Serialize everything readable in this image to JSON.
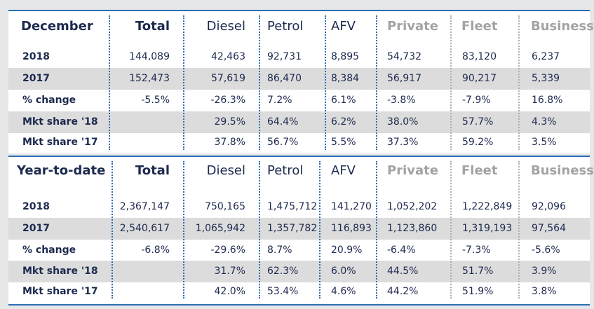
{
  "columns": [
    "Total",
    "Diesel",
    "Petrol",
    "AFV",
    "Private",
    "Fleet",
    "Business"
  ],
  "december": {
    "title": "December",
    "rows": [
      {
        "label": "2018",
        "values": [
          "144,089",
          "42,463",
          "92,731",
          "8,895",
          "54,732",
          "83,120",
          "6,237"
        ]
      },
      {
        "label": "2017",
        "values": [
          "152,473",
          "57,619",
          "86,470",
          "8,384",
          "56,917",
          "90,217",
          "5,339"
        ]
      },
      {
        "label": "% change",
        "values": [
          "-5.5%",
          "-26.3%",
          "7.2%",
          "6.1%",
          "-3.8%",
          "-7.9%",
          "16.8%"
        ]
      },
      {
        "label": "Mkt share '18",
        "values": [
          "",
          "29.5%",
          "64.4%",
          "6.2%",
          "38.0%",
          "57.7%",
          "4.3%"
        ]
      },
      {
        "label": "Mkt share '17",
        "values": [
          "",
          "37.8%",
          "56.7%",
          "5.5%",
          "37.3%",
          "59.2%",
          "3.5%"
        ]
      }
    ]
  },
  "ytd": {
    "title": "Year-to-date",
    "rows": [
      {
        "label": "2018",
        "values": [
          "2,367,147",
          "750,165",
          "1,475,712",
          "141,270",
          "1,052,202",
          "1,222,849",
          "92,096"
        ]
      },
      {
        "label": "2017",
        "values": [
          "2,540,617",
          "1,065,942",
          "1,357,782",
          "116,893",
          "1,123,860",
          "1,319,193",
          "97,564"
        ]
      },
      {
        "label": "% change",
        "values": [
          "-6.8%",
          "-29.6%",
          "8.7%",
          "20.9%",
          "-6.4%",
          "-7.3%",
          "-5.6%"
        ]
      },
      {
        "label": "Mkt share '18",
        "values": [
          "",
          "31.7%",
          "62.3%",
          "6.0%",
          "44.5%",
          "51.7%",
          "3.9%"
        ]
      },
      {
        "label": "Mkt share '17",
        "values": [
          "",
          "42.0%",
          "53.4%",
          "4.6%",
          "44.2%",
          "51.9%",
          "3.8%"
        ]
      }
    ]
  },
  "colors": {
    "accent_blue": "#2c6fb5",
    "text_navy": "#1d2a4f",
    "muted_header": "#a3a3a3",
    "row_shade": "#dcdcdc",
    "background": "#e6e7e8"
  }
}
